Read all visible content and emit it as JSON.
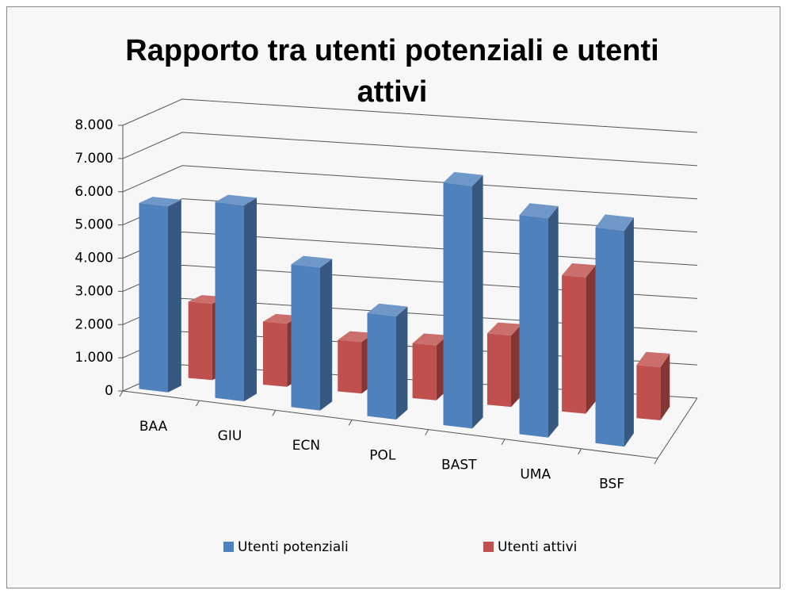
{
  "chart_data": {
    "type": "bar3d",
    "title": "Rapporto tra utenti potenziali e utenti attivi",
    "categories": [
      "BAA",
      "GIU",
      "ECN",
      "POL",
      "BAST",
      "UMA",
      "BSF"
    ],
    "series": [
      {
        "name": "Utenti potenziali",
        "color": "#4f81bd",
        "values": [
          5600,
          5900,
          4300,
          3100,
          7300,
          6600,
          6500
        ]
      },
      {
        "name": "Utenti attivi",
        "color": "#c0504d",
        "values": [
          2300,
          1900,
          1550,
          1650,
          2150,
          4100,
          1600
        ]
      }
    ],
    "ylim": [
      0,
      8000
    ],
    "yticks": [
      0,
      {
        "value": 1000,
        "label": "1.000"
      },
      {
        "value": 2000,
        "label": "2.000"
      },
      {
        "value": 3000,
        "label": "3.000"
      },
      {
        "value": 4000,
        "label": "4.000"
      },
      {
        "value": 5000,
        "label": "5.000"
      },
      {
        "value": 6000,
        "label": "6.000"
      },
      {
        "value": 7000,
        "label": "7.000"
      },
      {
        "value": 8000,
        "label": "8.000"
      }
    ],
    "grid": true,
    "legend": "bottom"
  }
}
